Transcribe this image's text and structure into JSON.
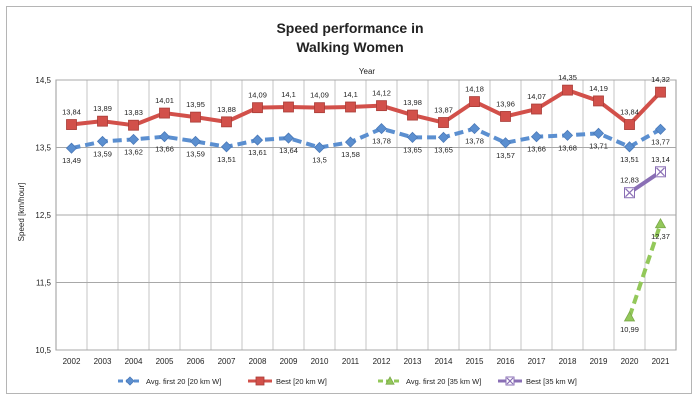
{
  "chart_data": {
    "type": "line",
    "title_lines": [
      "Speed performance in",
      "Walking Women"
    ],
    "xlabel_top": "Year",
    "ylabel": "Speed [km/hour]",
    "x": [
      2002,
      2003,
      2004,
      2005,
      2006,
      2007,
      2008,
      2009,
      2010,
      2011,
      2012,
      2013,
      2014,
      2015,
      2016,
      2017,
      2018,
      2019,
      2020,
      2021
    ],
    "x_tick_labels": [
      "2002",
      "2003",
      "2004",
      "2005",
      "2006",
      "2007",
      "2008",
      "2009",
      "2010",
      "2011",
      "2012",
      "2013",
      "2014",
      "2015",
      "2016",
      "2017",
      "2018",
      "2019",
      "2020",
      "2021"
    ],
    "ylim": [
      10.5,
      14.5
    ],
    "y_ticks": [
      10.5,
      11.5,
      12.5,
      13.5,
      14.5
    ],
    "y_tick_labels": [
      "10,5",
      "11,5",
      "12,5",
      "13,5",
      "14,5"
    ],
    "grid": true,
    "legend_position": "bottom",
    "series": [
      {
        "name": "Avg. first 20 [20 km W]",
        "color": "#5b8fd0",
        "style": "dashed",
        "marker": "diamond",
        "label_side": "below",
        "values": [
          13.49,
          13.59,
          13.62,
          13.66,
          13.59,
          13.51,
          13.61,
          13.64,
          13.5,
          13.58,
          13.78,
          13.65,
          13.65,
          13.78,
          13.57,
          13.66,
          13.68,
          13.71,
          13.51,
          13.77
        ],
        "labels": [
          "13,49",
          "13,59",
          "13,62",
          "13,66",
          "13,59",
          "13,51",
          "13,61",
          "13,64",
          "13,5",
          "13,58",
          "13,78",
          "13,65",
          "13,65",
          "13,78",
          "13,57",
          "13,66",
          "13,68",
          "13,71",
          "13,51",
          "13,77"
        ]
      },
      {
        "name": "Best [20 km W]",
        "color": "#d2504a",
        "style": "solid",
        "marker": "square",
        "label_side": "above",
        "values": [
          13.84,
          13.89,
          13.83,
          14.01,
          13.95,
          13.88,
          14.09,
          14.1,
          14.09,
          14.1,
          14.12,
          13.98,
          13.87,
          14.18,
          13.96,
          14.07,
          14.35,
          14.19,
          13.84,
          14.32
        ],
        "labels": [
          "13,84",
          "13,89",
          "13,83",
          "14,01",
          "13,95",
          "13,88",
          "14,09",
          "14,1",
          "14,09",
          "14,1",
          "14,12",
          "13,98",
          "13,87",
          "14,18",
          "13,96",
          "14,07",
          "14,35",
          "14,19",
          "13,84",
          "14,32"
        ]
      },
      {
        "name": "Avg. first 20 [35 km W]",
        "color": "#93c85a",
        "style": "dashed",
        "marker": "triangle",
        "label_side": "below",
        "values": [
          null,
          null,
          null,
          null,
          null,
          null,
          null,
          null,
          null,
          null,
          null,
          null,
          null,
          null,
          null,
          null,
          null,
          null,
          10.99,
          12.37
        ],
        "labels": [
          null,
          null,
          null,
          null,
          null,
          null,
          null,
          null,
          null,
          null,
          null,
          null,
          null,
          null,
          null,
          null,
          null,
          null,
          "10,99",
          "12,37"
        ]
      },
      {
        "name": "Best [35 km W]",
        "color": "#8a6fb5",
        "style": "solid",
        "marker": "x",
        "label_side": "above",
        "values": [
          null,
          null,
          null,
          null,
          null,
          null,
          null,
          null,
          null,
          null,
          null,
          null,
          null,
          null,
          null,
          null,
          null,
          null,
          12.83,
          13.14
        ],
        "labels": [
          null,
          null,
          null,
          null,
          null,
          null,
          null,
          null,
          null,
          null,
          null,
          null,
          null,
          null,
          null,
          null,
          null,
          null,
          "12,83",
          "13,14"
        ]
      }
    ]
  }
}
